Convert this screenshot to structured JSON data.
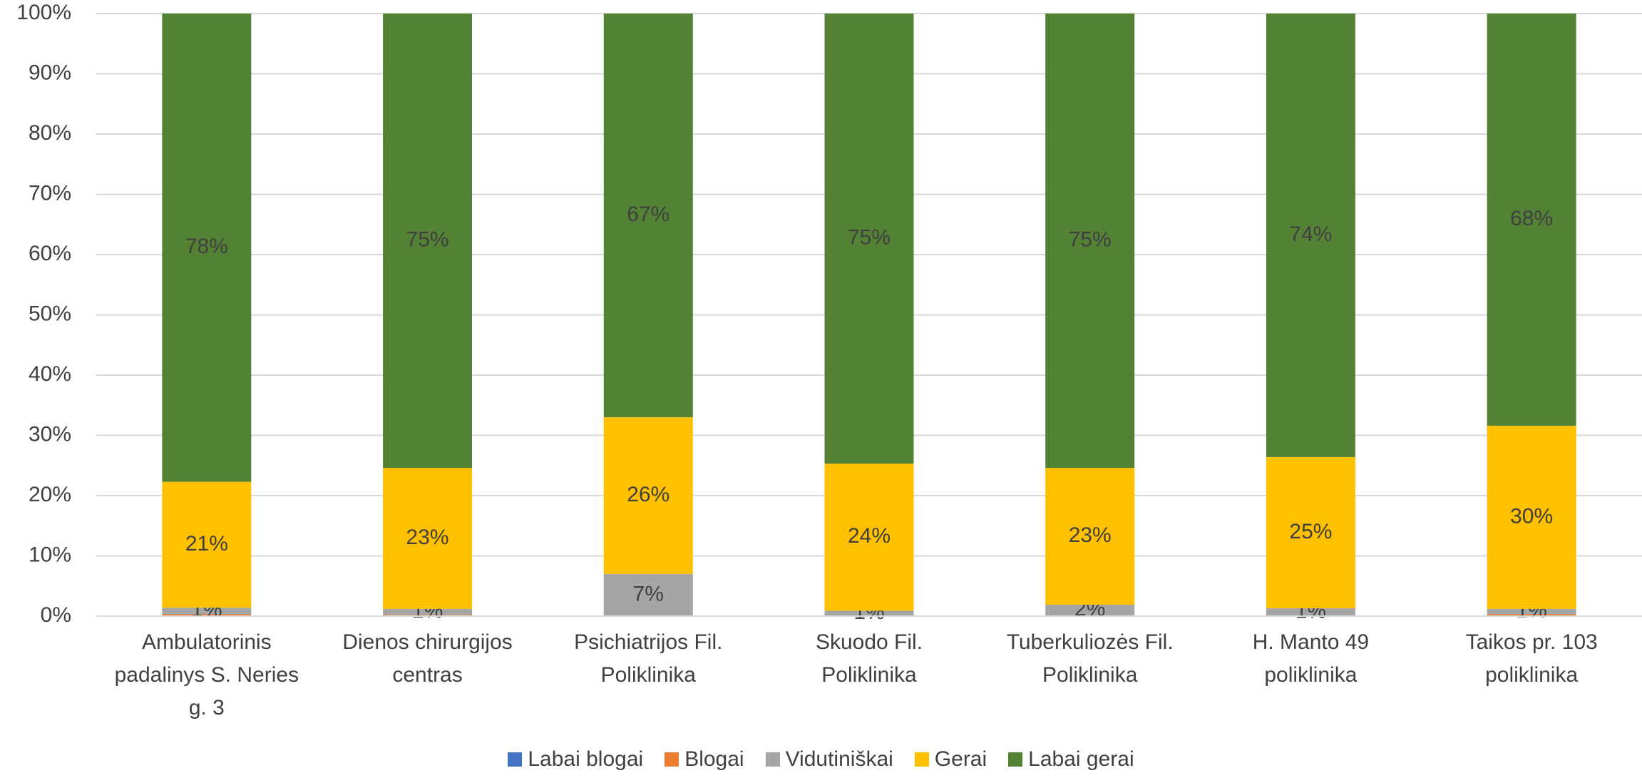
{
  "chart_data": {
    "type": "stacked_bar",
    "categories": [
      "Ambulatorinis padalinys S. Neries g. 3",
      "Dienos chirurgijos centras",
      "Psichiatrijos Fil. Poliklinika",
      "Skuodo Fil. Poliklinika",
      "Tuberkuliozės Fil. Poliklinika",
      "H. Manto 49 poliklinika",
      "Taikos pr. 103 poliklinika"
    ],
    "series": [
      {
        "name": "Labai blogai",
        "color": "#4472c4",
        "values": [
          0,
          0,
          0,
          0,
          0,
          0,
          0
        ]
      },
      {
        "name": "Blogai",
        "color": "#ed7d31",
        "values": [
          0.3,
          0.2,
          0,
          0,
          0.1,
          0,
          0.3
        ]
      },
      {
        "name": "Vidutiniškai",
        "color": "#a5a5a5",
        "values": [
          1.1,
          1.0,
          7.0,
          0.9,
          1.8,
          1.3,
          0.9
        ],
        "value_labels": [
          "1%",
          "1%",
          "7%",
          "1%",
          "2%",
          "1%",
          "1%"
        ]
      },
      {
        "name": "Gerai",
        "color": "#ffc000",
        "values": [
          20.9,
          23.4,
          26.0,
          24.4,
          22.7,
          25.1,
          30.4
        ],
        "value_labels": [
          "21%",
          "23%",
          "26%",
          "24%",
          "23%",
          "25%",
          "30%"
        ]
      },
      {
        "name": "Labai gerai",
        "color": "#548235",
        "values": [
          77.7,
          75.4,
          67.0,
          74.7,
          75.4,
          73.6,
          68.4
        ],
        "value_labels": [
          "78%",
          "75%",
          "67%",
          "75%",
          "75%",
          "74%",
          "68%"
        ]
      }
    ],
    "ylim": [
      0,
      100
    ],
    "yticks": [
      {
        "value": 0,
        "label": "0%"
      },
      {
        "value": 10,
        "label": "10%"
      },
      {
        "value": 20,
        "label": "20%"
      },
      {
        "value": 30,
        "label": "30%"
      },
      {
        "value": 40,
        "label": "40%"
      },
      {
        "value": 50,
        "label": "50%"
      },
      {
        "value": 60,
        "label": "60%"
      },
      {
        "value": 70,
        "label": "70%"
      },
      {
        "value": 80,
        "label": "80%"
      },
      {
        "value": 90,
        "label": "90%"
      },
      {
        "value": 100,
        "label": "100%"
      }
    ],
    "grid": true,
    "legend": "bottom"
  }
}
